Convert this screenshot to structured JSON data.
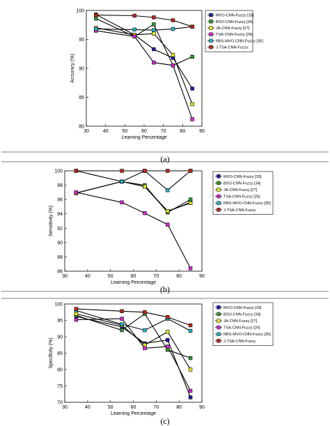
{
  "captions": [
    "(a)",
    "(b)",
    "(c)"
  ],
  "chart_data": [
    {
      "type": "line",
      "xlabel": "Learning Percentage",
      "ylabel": "Accuracy (%)",
      "xlim": [
        30,
        90
      ],
      "ylim": [
        80,
        100
      ],
      "xticks": [
        30,
        40,
        50,
        60,
        70,
        80,
        90
      ],
      "yticks": [
        80,
        85,
        90,
        95,
        100
      ],
      "legend_position": "top-right",
      "x": [
        35,
        55,
        65,
        75,
        85
      ],
      "series": [
        {
          "name": "MVO-CNN-Fuzzy [33]",
          "color": "#1f1fa8",
          "values": [
            99.3,
            95.8,
            93.3,
            91.8,
            86.5
          ]
        },
        {
          "name": "BSO-CNN-Fuzzy [34]",
          "color": "#2e9b2e",
          "values": [
            98.6,
            95.5,
            97.6,
            90.5,
            92.0
          ]
        },
        {
          "name": "JA-CNN-Fuzzy [27]",
          "color": "#e8e820",
          "values": [
            97.0,
            95.8,
            96.0,
            92.3,
            83.8
          ]
        },
        {
          "name": "TSA-CNN-Fuzzy [26]",
          "color": "#d62ad6",
          "values": [
            96.5,
            95.5,
            91.0,
            90.5,
            81.2
          ]
        },
        {
          "name": "RBS-MVO-CNN-Fuzzy [35]",
          "color": "#23b8c9",
          "values": [
            96.8,
            96.7,
            96.6,
            96.8,
            97.2
          ]
        },
        {
          "name": "J-TSA-CNN-Fuzzy",
          "color": "#c4281c",
          "values": [
            99.2,
            99.1,
            98.8,
            98.3,
            97.2
          ]
        }
      ]
    },
    {
      "type": "line",
      "xlabel": "Learning Percentage",
      "ylabel": "Sensitivity (%)",
      "xlim": [
        30,
        90
      ],
      "ylim": [
        86,
        100
      ],
      "xticks": [
        30,
        40,
        50,
        60,
        70,
        80,
        90
      ],
      "yticks": [
        86,
        88,
        90,
        92,
        94,
        96,
        98,
        100
      ],
      "legend_position": "top-right",
      "x": [
        35,
        55,
        65,
        75,
        85
      ],
      "series": [
        {
          "name": "MVO-CNN-Fuzzy [33]",
          "color": "#1f1fa8",
          "values": [
            96.9,
            98.5,
            97.8,
            94.3,
            95.6
          ]
        },
        {
          "name": "BSO-CNN-Fuzzy [34]",
          "color": "#2e9b2e",
          "values": [
            96.9,
            98.5,
            98.0,
            94.2,
            96.0
          ]
        },
        {
          "name": "JA-CNN-Fuzzy [27]",
          "color": "#e8e820",
          "values": [
            96.9,
            98.5,
            97.8,
            94.4,
            95.5
          ]
        },
        {
          "name": "TSA-CNN-Fuzzy [26]",
          "color": "#d62ad6",
          "values": [
            97.0,
            95.6,
            94.1,
            92.5,
            86.4
          ]
        },
        {
          "name": "RBS-MVO-CNN-Fuzzy [35]",
          "color": "#23b8c9",
          "values": [
            100.0,
            98.5,
            100.0,
            97.3,
            100.0
          ]
        },
        {
          "name": "J-TSA-CNN-Fuzzy",
          "color": "#c4281c",
          "values": [
            100.0,
            100.0,
            100.0,
            100.0,
            100.0
          ]
        }
      ]
    },
    {
      "type": "line",
      "xlabel": "Learning Percentage",
      "ylabel": "Specificity (%)",
      "xlim": [
        30,
        90
      ],
      "ylim": [
        70,
        100
      ],
      "xticks": [
        30,
        40,
        50,
        60,
        70,
        80,
        90
      ],
      "yticks": [
        70,
        75,
        80,
        85,
        90,
        95,
        100
      ],
      "legend_position": "top-right",
      "x": [
        35,
        55,
        65,
        75,
        85
      ],
      "series": [
        {
          "name": "MVO-CNN-Fuzzy [33]",
          "color": "#1f1fa8",
          "values": [
            96.2,
            93.0,
            88.0,
            89.0,
            71.5
          ]
        },
        {
          "name": "BSO-CNN-Fuzzy [34]",
          "color": "#2e9b2e",
          "values": [
            96.5,
            92.0,
            97.0,
            86.0,
            83.5
          ]
        },
        {
          "name": "JA-CNN-Fuzzy [27]",
          "color": "#e8e820",
          "values": [
            97.0,
            93.5,
            87.5,
            91.5,
            80.0
          ]
        },
        {
          "name": "TSA-CNN-Fuzzy [26]",
          "color": "#d62ad6",
          "values": [
            95.2,
            95.5,
            86.5,
            87.0,
            73.5
          ]
        },
        {
          "name": "RBS-MVO-CNN-Fuzzy [35]",
          "color": "#23b8c9",
          "values": [
            98.0,
            93.8,
            92.0,
            95.5,
            91.8
          ]
        },
        {
          "name": "J-TSA-CNN-Fuzzy",
          "color": "#c4281c",
          "values": [
            98.5,
            97.8,
            97.5,
            96.0,
            93.5
          ]
        }
      ]
    }
  ]
}
